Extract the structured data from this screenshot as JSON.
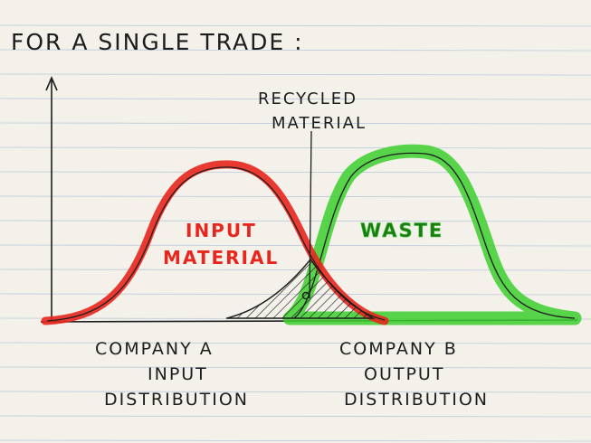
{
  "title": "FOR A SINGLE TRADE :",
  "annotation": {
    "line1": "RECYCLED",
    "line2": "MATERIAL"
  },
  "curves": {
    "input": {
      "label_line1": "INPUT",
      "label_line2": "MATERIAL",
      "color": "#e8261e"
    },
    "waste": {
      "label": "WASTE",
      "color": "#3ccf2e"
    }
  },
  "axis_labels": {
    "company_a": [
      "COMPANY A",
      "INPUT",
      "DISTRIBUTION"
    ],
    "company_b": [
      "COMPANY B",
      "OUTPUT",
      "DISTRIBUTION"
    ]
  },
  "colors": {
    "paper": "#f4f1ea",
    "rule_line": "#b9c9dc",
    "margin_line": "#e3a7a7",
    "ink": "#1d1d1d"
  }
}
